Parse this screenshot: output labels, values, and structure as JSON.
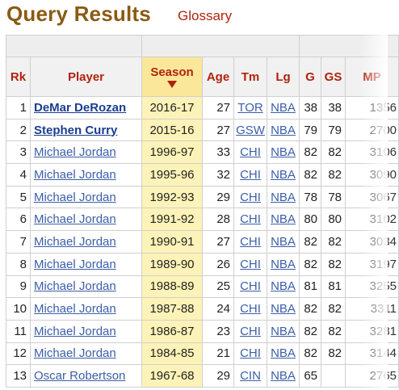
{
  "header": {
    "title": "Query Results",
    "glossary": "Glossary"
  },
  "table": {
    "columns": [
      "Rk",
      "Player",
      "Season",
      "Age",
      "Tm",
      "Lg",
      "G",
      "GS",
      "MP"
    ],
    "rows": [
      {
        "rk": "1",
        "player": "DeMar DeRozan",
        "season": "2016-17",
        "age": "27",
        "tm": "TOR",
        "lg": "NBA",
        "g": "38",
        "gs": "38",
        "mp": "1356",
        "bold": true
      },
      {
        "rk": "2",
        "player": "Stephen Curry",
        "season": "2015-16",
        "age": "27",
        "tm": "GSW",
        "lg": "NBA",
        "g": "79",
        "gs": "79",
        "mp": "2700",
        "bold": true
      },
      {
        "rk": "3",
        "player": "Michael Jordan",
        "season": "1996-97",
        "age": "33",
        "tm": "CHI",
        "lg": "NBA",
        "g": "82",
        "gs": "82",
        "mp": "3106",
        "bold": false
      },
      {
        "rk": "4",
        "player": "Michael Jordan",
        "season": "1995-96",
        "age": "32",
        "tm": "CHI",
        "lg": "NBA",
        "g": "82",
        "gs": "82",
        "mp": "3090",
        "bold": false
      },
      {
        "rk": "5",
        "player": "Michael Jordan",
        "season": "1992-93",
        "age": "29",
        "tm": "CHI",
        "lg": "NBA",
        "g": "78",
        "gs": "78",
        "mp": "3067",
        "bold": false
      },
      {
        "rk": "6",
        "player": "Michael Jordan",
        "season": "1991-92",
        "age": "28",
        "tm": "CHI",
        "lg": "NBA",
        "g": "80",
        "gs": "80",
        "mp": "3102",
        "bold": false
      },
      {
        "rk": "7",
        "player": "Michael Jordan",
        "season": "1990-91",
        "age": "27",
        "tm": "CHI",
        "lg": "NBA",
        "g": "82",
        "gs": "82",
        "mp": "3034",
        "bold": false
      },
      {
        "rk": "8",
        "player": "Michael Jordan",
        "season": "1989-90",
        "age": "26",
        "tm": "CHI",
        "lg": "NBA",
        "g": "82",
        "gs": "82",
        "mp": "3197",
        "bold": false
      },
      {
        "rk": "9",
        "player": "Michael Jordan",
        "season": "1988-89",
        "age": "25",
        "tm": "CHI",
        "lg": "NBA",
        "g": "81",
        "gs": "81",
        "mp": "3255",
        "bold": false
      },
      {
        "rk": "10",
        "player": "Michael Jordan",
        "season": "1987-88",
        "age": "24",
        "tm": "CHI",
        "lg": "NBA",
        "g": "82",
        "gs": "82",
        "mp": "3311",
        "bold": false
      },
      {
        "rk": "11",
        "player": "Michael Jordan",
        "season": "1986-87",
        "age": "23",
        "tm": "CHI",
        "lg": "NBA",
        "g": "82",
        "gs": "82",
        "mp": "3281",
        "bold": false
      },
      {
        "rk": "12",
        "player": "Michael Jordan",
        "season": "1984-85",
        "age": "21",
        "tm": "CHI",
        "lg": "NBA",
        "g": "82",
        "gs": "82",
        "mp": "3144",
        "bold": false
      },
      {
        "rk": "13",
        "player": "Oscar Robertson",
        "season": "1967-68",
        "age": "29",
        "tm": "CIN",
        "lg": "NBA",
        "g": "65",
        "gs": "",
        "mp": "2765",
        "bold": false
      }
    ]
  },
  "colors": {
    "title": "#8b5a12",
    "accent": "#b0230e",
    "link": "#3b5ea8",
    "sorted_bg": "#fdf3b8"
  },
  "icons": {
    "sort": "sort-desc-icon"
  }
}
